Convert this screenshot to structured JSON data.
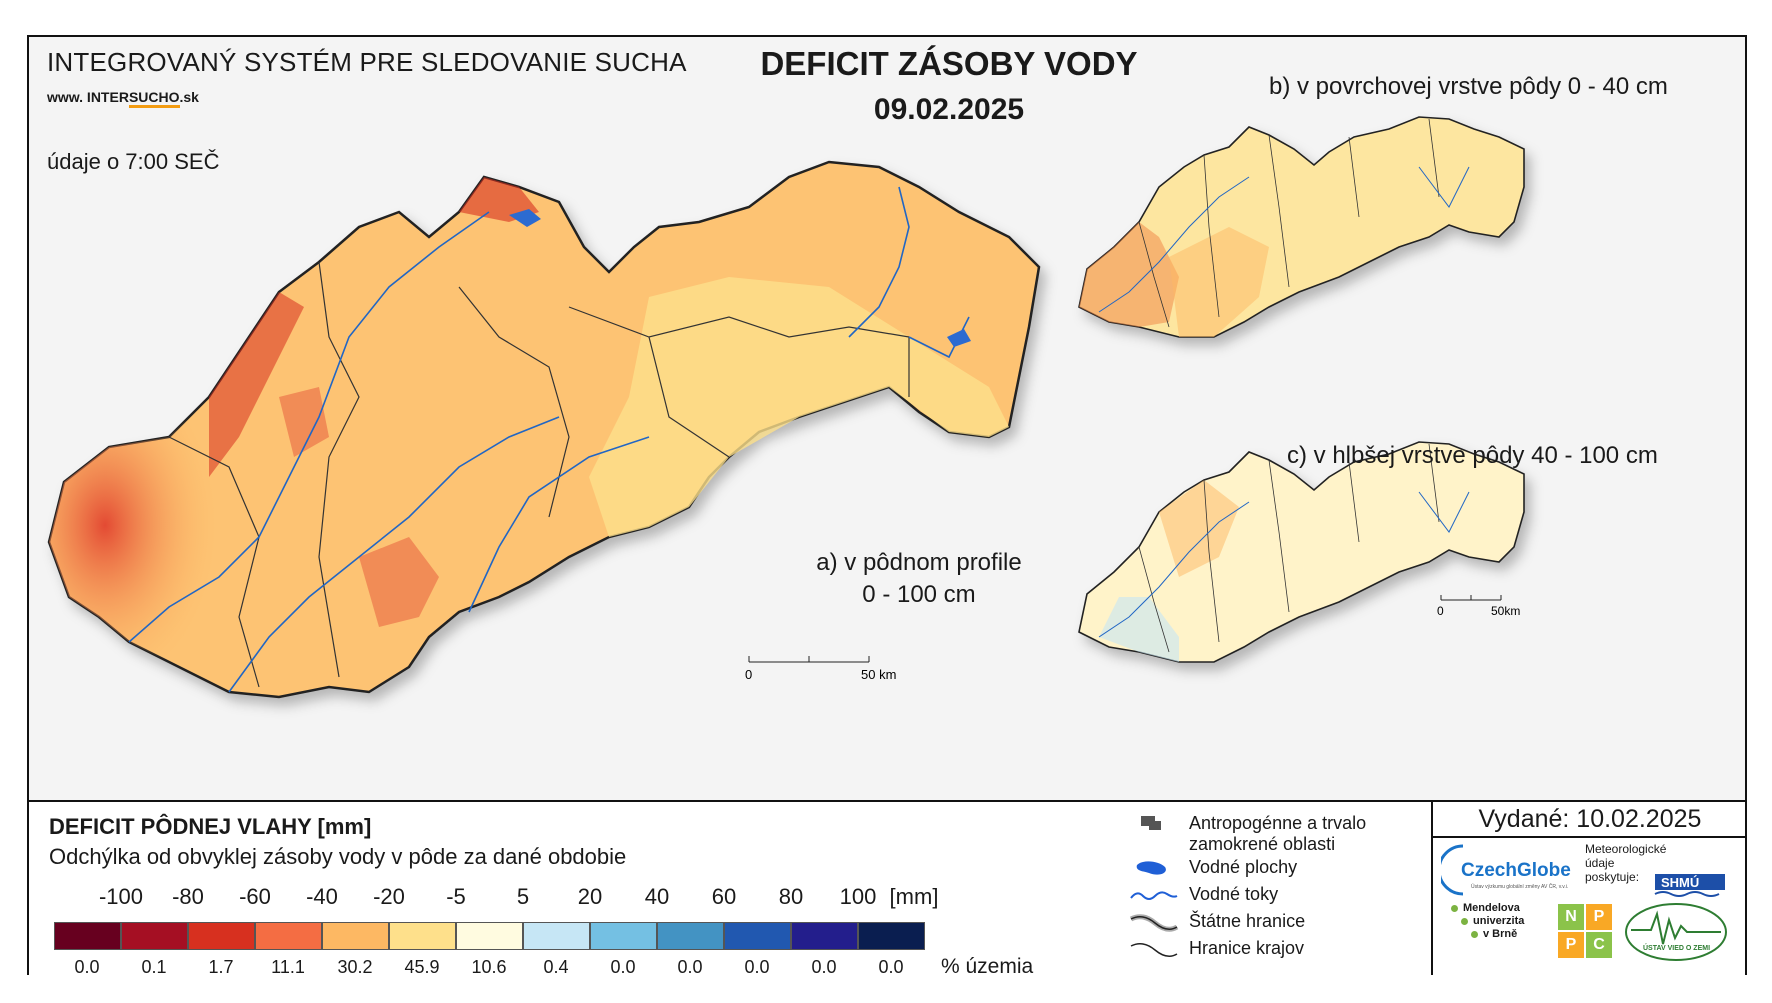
{
  "header": {
    "system_title": "INTEGROVANÝ SYSTÉM PRE SLEDOVANIE SUCHA",
    "website_prefix": "www. INTER",
    "website_highlight": "SUCHO",
    "website_suffix": ".sk",
    "data_time": "údaje o 7:00 SEČ",
    "main_title": "DEFICIT ZÁSOBY VODY",
    "date": "09.02.2025"
  },
  "maps": {
    "a_label_line1": "a) v pôdnom profile",
    "a_label_line2": "0 - 100 cm",
    "b_label": "b) v povrchovej vrstve pôdy 0 - 40 cm",
    "c_label": "c) v hlbšej vrstve pôdy 40 - 100 cm",
    "scale_main": {
      "zero": "0",
      "end": "50 km"
    },
    "scale_small": {
      "zero": "0",
      "end": "50km"
    }
  },
  "legend": {
    "title": "DEFICIT PÔDNEJ VLAHY [mm]",
    "subtitle": "Odchýlka od obvyklej zásoby vody v pôde za dané obdobie",
    "ticks": [
      "-100",
      "-80",
      "-60",
      "-40",
      "-20",
      "-5",
      "5",
      "20",
      "40",
      "60",
      "80",
      "100"
    ],
    "unit": "[mm]",
    "colors": [
      "#67001f",
      "#a50f23",
      "#d7301f",
      "#f46d43",
      "#fdb863",
      "#fee08b",
      "#fffbe0",
      "#c6e6f5",
      "#74c0e3",
      "#4393c3",
      "#2158b0",
      "#231e8c",
      "#0a1e50"
    ],
    "percentages": [
      "0.0",
      "0.1",
      "1.7",
      "11.1",
      "30.2",
      "45.9",
      "10.6",
      "0.4",
      "0.0",
      "0.0",
      "0.0",
      "0.0",
      "0.0"
    ],
    "percent_unit": "% územia"
  },
  "symbols": {
    "urban": "Antropogénne a trvalo",
    "urban2": "zamokrené oblasti",
    "water_bodies": "Vodné plochy",
    "rivers": "Vodné toky",
    "state_border": "Štátne hranice",
    "region_border": "Hranice krajov"
  },
  "issued": "Vydané: 10.02.2025",
  "logos": {
    "czechglobe": "CzechGlobe",
    "czechglobe_sub": "Ústav výzkumu globální změny AV ČR, v.v.i.",
    "meteo1": "Meteorologické",
    "meteo2": "údaje",
    "meteo3": "poskytuje:",
    "shmu": "SHMÚ",
    "mendel1": "Mendelova",
    "mendel2": "univerzita",
    "mendel3": "v Brně",
    "nppc": [
      "N",
      "P",
      "P",
      "C"
    ],
    "uvz": "ÚSTAV VIED O ZEMI"
  }
}
